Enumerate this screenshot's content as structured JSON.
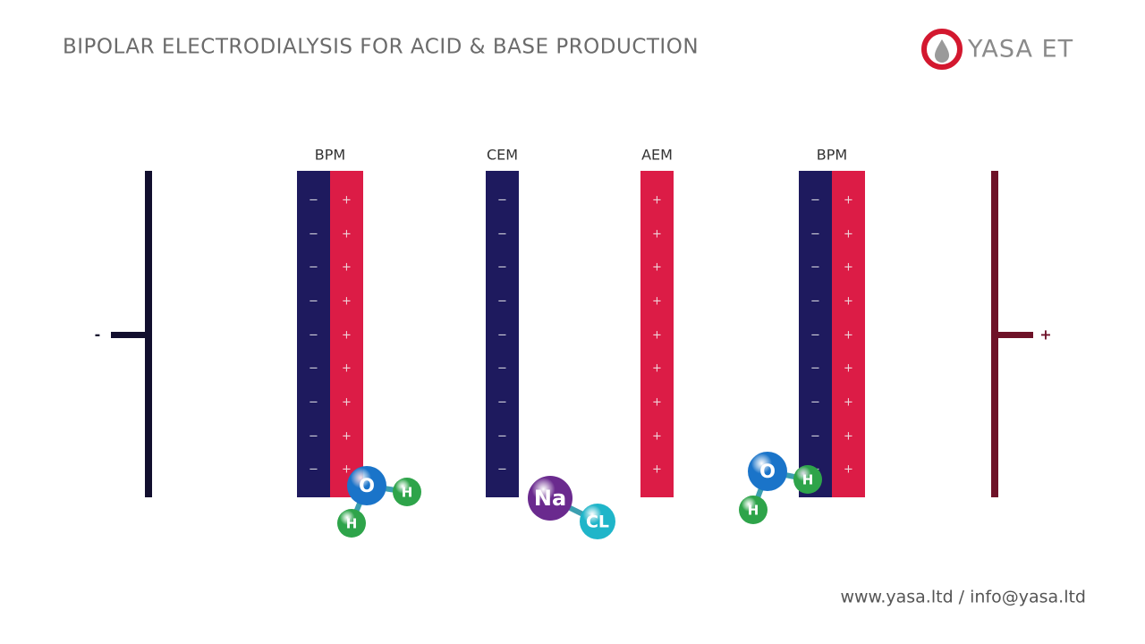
{
  "header": {
    "title": "BIPOLAR ELECTRODIALYSIS FOR ACID & BASE PRODUCTION",
    "logo": "YASA ET"
  },
  "electrodes": [
    {
      "sign": "-"
    },
    {
      "sign": "+"
    }
  ],
  "membranes": [
    {
      "label": "BPM",
      "charges": [
        "−",
        "+"
      ]
    },
    {
      "label": "CEM",
      "charges": [
        "−"
      ]
    },
    {
      "label": "AEM",
      "charges": [
        "+"
      ]
    },
    {
      "label": "BPM",
      "charges": [
        "−",
        "+"
      ]
    }
  ],
  "molecules": [
    {
      "atoms": [
        "O",
        "H",
        "H"
      ]
    },
    {
      "atoms": [
        "Na",
        "CL"
      ]
    },
    {
      "atoms": [
        "O",
        "H",
        "H"
      ]
    }
  ],
  "footer": "www.yasa.ltd / info@yasa.ltd"
}
